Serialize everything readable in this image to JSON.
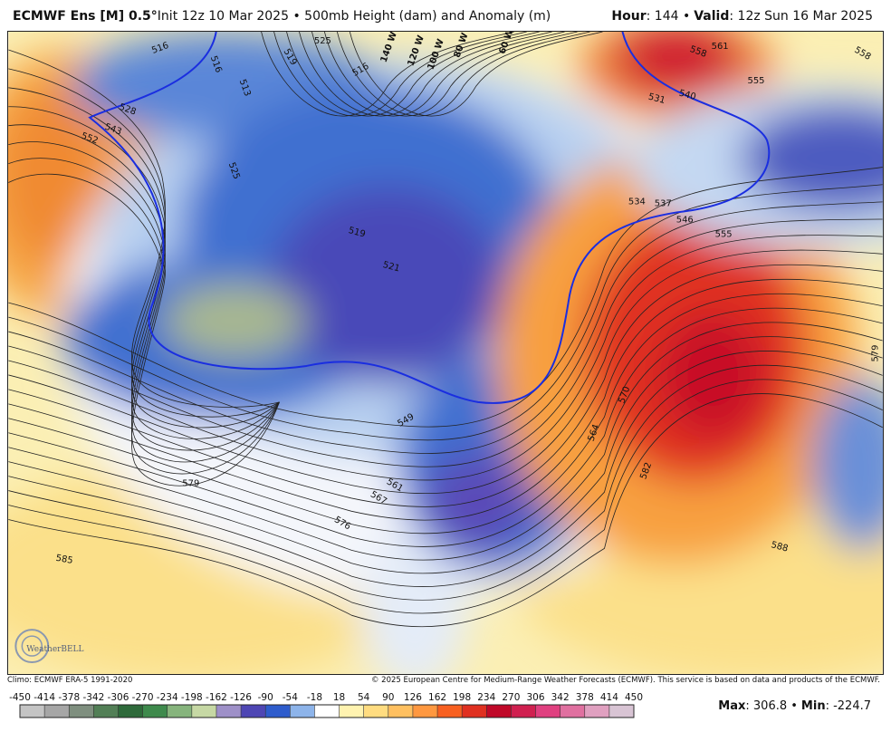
{
  "header": {
    "left": [
      {
        "text": "ECMWF Ens [M] 0.5°",
        "bold": true
      },
      {
        "text": "Init 12z 10 Mar 2025 • 500mb Height (dam) and Anomaly (m)"
      }
    ],
    "right": [
      {
        "text": "Hour",
        "bold": true
      },
      {
        "text": ": 144 •"
      },
      {
        "text": "Valid",
        "bold": true
      },
      {
        "text": ": 12z Sun 16 Mar 2025"
      }
    ]
  },
  "map": {
    "contour_labels": [
      516,
      516,
      519,
      525,
      516,
      513,
      528,
      543,
      552,
      525,
      519,
      521,
      549,
      561,
      567,
      576,
      579,
      585,
      564,
      570,
      582,
      588,
      534,
      537,
      546,
      555,
      531,
      540,
      558,
      561,
      555,
      558,
      579
    ],
    "longitude_labels": [
      "140 W",
      "120 W",
      "100 W",
      "80 W",
      "60 W"
    ],
    "logo": "WeatherBELL"
  },
  "footer": {
    "climo": "Climo: ECMWF ERA-5 1991-2020",
    "copyright": "© 2025 European Centre for Medium-Range Weather Forecasts (ECMWF). This service is based on data and products of the ECMWF.",
    "stats": [
      {
        "text": "Max",
        "bold": true
      },
      {
        "text": ": 306.8 •"
      },
      {
        "text": "Min",
        "bold": true
      },
      {
        "text": ": -224.7"
      }
    ]
  },
  "colorbar": {
    "ticks": [
      -450,
      -414,
      -378,
      -342,
      -306,
      -270,
      -234,
      -198,
      -162,
      -126,
      -90,
      -54,
      -18,
      18,
      54,
      90,
      126,
      162,
      198,
      234,
      270,
      306,
      342,
      378,
      414,
      450
    ],
    "colors": [
      "#c4c4c4",
      "#a6a6a6",
      "#7f8f7f",
      "#527f56",
      "#2e6a3a",
      "#3e8a4c",
      "#86b47c",
      "#c6d8a4",
      "#9e90c8",
      "#4e46b4",
      "#2e5ccc",
      "#8db4ea",
      "#ffffff",
      "#fff3b0",
      "#ffdc80",
      "#ffc060",
      "#ff9840",
      "#f86020",
      "#e03020",
      "#c00828",
      "#d02050",
      "#e04080",
      "#e070a0",
      "#e0a0c0",
      "#d8c4d4"
    ]
  }
}
